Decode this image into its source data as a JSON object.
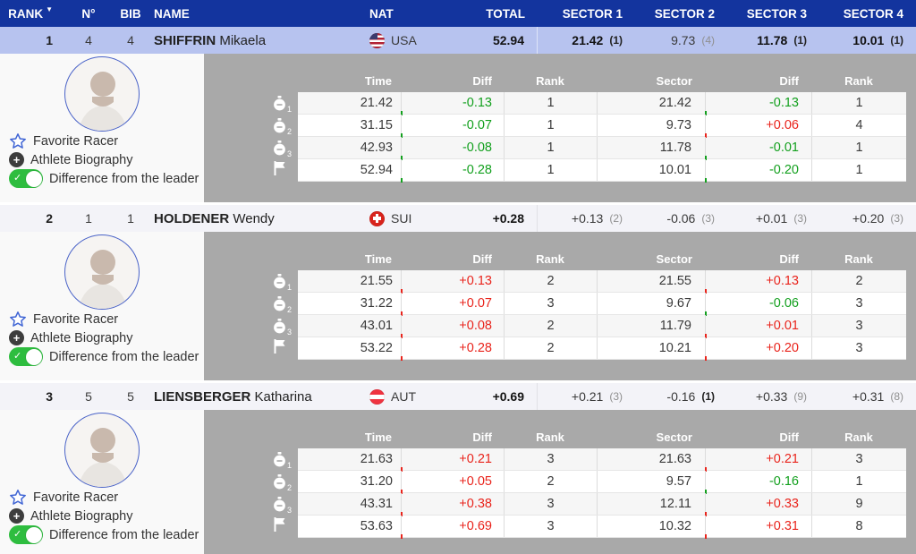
{
  "summary_header": {
    "sort_icon": "▼",
    "columns": [
      "RANK",
      "N°",
      "BIB",
      "NAME",
      "NAT",
      "TOTAL",
      "SECTOR 1",
      "SECTOR 2",
      "SECTOR 3",
      "SECTOR 4"
    ]
  },
  "detail_header": {
    "columns": [
      "Time",
      "Diff",
      "Rank",
      "Sector",
      "Diff",
      "Rank"
    ]
  },
  "left_panel": {
    "favorite": "Favorite Racer",
    "biography": "Athlete Biography",
    "toggle": "Difference from the leader",
    "toggle_on": true,
    "toggle_check": "✓",
    "plus_glyph": "+"
  },
  "split_icons": [
    {
      "type": "stopwatch-icon",
      "sub": "1"
    },
    {
      "type": "stopwatch-icon",
      "sub": "2"
    },
    {
      "type": "stopwatch-icon",
      "sub": "3"
    },
    {
      "type": "finish-flag-icon",
      "sub": ""
    }
  ],
  "colors": {
    "header_blue": "#13349E",
    "leader_row": "#b7c3ef",
    "panel_grey": "#a9a9a9",
    "positive_diff_red": "#e9241c",
    "negative_diff_green": "#13a01e",
    "toggle_green": "#2ebd3f"
  },
  "racers": [
    {
      "rank": "1",
      "number": "4",
      "bib": "4",
      "last_name": "SHIFFRIN",
      "first_name": "Mikaela",
      "nation_code": "USA",
      "flag": "usa",
      "total": "52.94",
      "is_leader": true,
      "sector_summary": [
        {
          "value": "21.42",
          "rank": "(1)",
          "value_bold": true,
          "rank_bold": true
        },
        {
          "value": "9.73",
          "rank": "(4)",
          "value_bold": false,
          "rank_bold": false
        },
        {
          "value": "11.78",
          "rank": "(1)",
          "value_bold": true,
          "rank_bold": true
        },
        {
          "value": "10.01",
          "rank": "(1)",
          "value_bold": true,
          "rank_bold": true
        }
      ],
      "splits": [
        {
          "time": "21.42",
          "diff": "-0.13",
          "rank": "1",
          "sector": "21.42",
          "sector_diff": "-0.13",
          "sector_rank": "1"
        },
        {
          "time": "31.15",
          "diff": "-0.07",
          "rank": "1",
          "sector": "9.73",
          "sector_diff": "+0.06",
          "sector_rank": "4"
        },
        {
          "time": "42.93",
          "diff": "-0.08",
          "rank": "1",
          "sector": "11.78",
          "sector_diff": "-0.01",
          "sector_rank": "1"
        },
        {
          "time": "52.94",
          "diff": "-0.28",
          "rank": "1",
          "sector": "10.01",
          "sector_diff": "-0.20",
          "sector_rank": "1"
        }
      ]
    },
    {
      "rank": "2",
      "number": "1",
      "bib": "1",
      "last_name": "HOLDENER",
      "first_name": "Wendy",
      "nation_code": "SUI",
      "flag": "sui",
      "total": "+0.28",
      "is_leader": false,
      "sector_summary": [
        {
          "value": "+0.13",
          "rank": "(2)",
          "value_bold": false,
          "rank_bold": false
        },
        {
          "value": "-0.06",
          "rank": "(3)",
          "value_bold": false,
          "rank_bold": false
        },
        {
          "value": "+0.01",
          "rank": "(3)",
          "value_bold": false,
          "rank_bold": false
        },
        {
          "value": "+0.20",
          "rank": "(3)",
          "value_bold": false,
          "rank_bold": false
        }
      ],
      "splits": [
        {
          "time": "21.55",
          "diff": "+0.13",
          "rank": "2",
          "sector": "21.55",
          "sector_diff": "+0.13",
          "sector_rank": "2"
        },
        {
          "time": "31.22",
          "diff": "+0.07",
          "rank": "3",
          "sector": "9.67",
          "sector_diff": "-0.06",
          "sector_rank": "3"
        },
        {
          "time": "43.01",
          "diff": "+0.08",
          "rank": "2",
          "sector": "11.79",
          "sector_diff": "+0.01",
          "sector_rank": "3"
        },
        {
          "time": "53.22",
          "diff": "+0.28",
          "rank": "2",
          "sector": "10.21",
          "sector_diff": "+0.20",
          "sector_rank": "3"
        }
      ]
    },
    {
      "rank": "3",
      "number": "5",
      "bib": "5",
      "last_name": "LIENSBERGER",
      "first_name": "Katharina",
      "nation_code": "AUT",
      "flag": "aut",
      "total": "+0.69",
      "is_leader": false,
      "sector_summary": [
        {
          "value": "+0.21",
          "rank": "(3)",
          "value_bold": false,
          "rank_bold": false
        },
        {
          "value": "-0.16",
          "rank": "(1)",
          "value_bold": false,
          "rank_bold": true
        },
        {
          "value": "+0.33",
          "rank": "(9)",
          "value_bold": false,
          "rank_bold": false
        },
        {
          "value": "+0.31",
          "rank": "(8)",
          "value_bold": false,
          "rank_bold": false
        }
      ],
      "splits": [
        {
          "time": "21.63",
          "diff": "+0.21",
          "rank": "3",
          "sector": "21.63",
          "sector_diff": "+0.21",
          "sector_rank": "3"
        },
        {
          "time": "31.20",
          "diff": "+0.05",
          "rank": "2",
          "sector": "9.57",
          "sector_diff": "-0.16",
          "sector_rank": "1"
        },
        {
          "time": "43.31",
          "diff": "+0.38",
          "rank": "3",
          "sector": "12.11",
          "sector_diff": "+0.33",
          "sector_rank": "9"
        },
        {
          "time": "53.63",
          "diff": "+0.69",
          "rank": "3",
          "sector": "10.32",
          "sector_diff": "+0.31",
          "sector_rank": "8"
        }
      ]
    }
  ]
}
